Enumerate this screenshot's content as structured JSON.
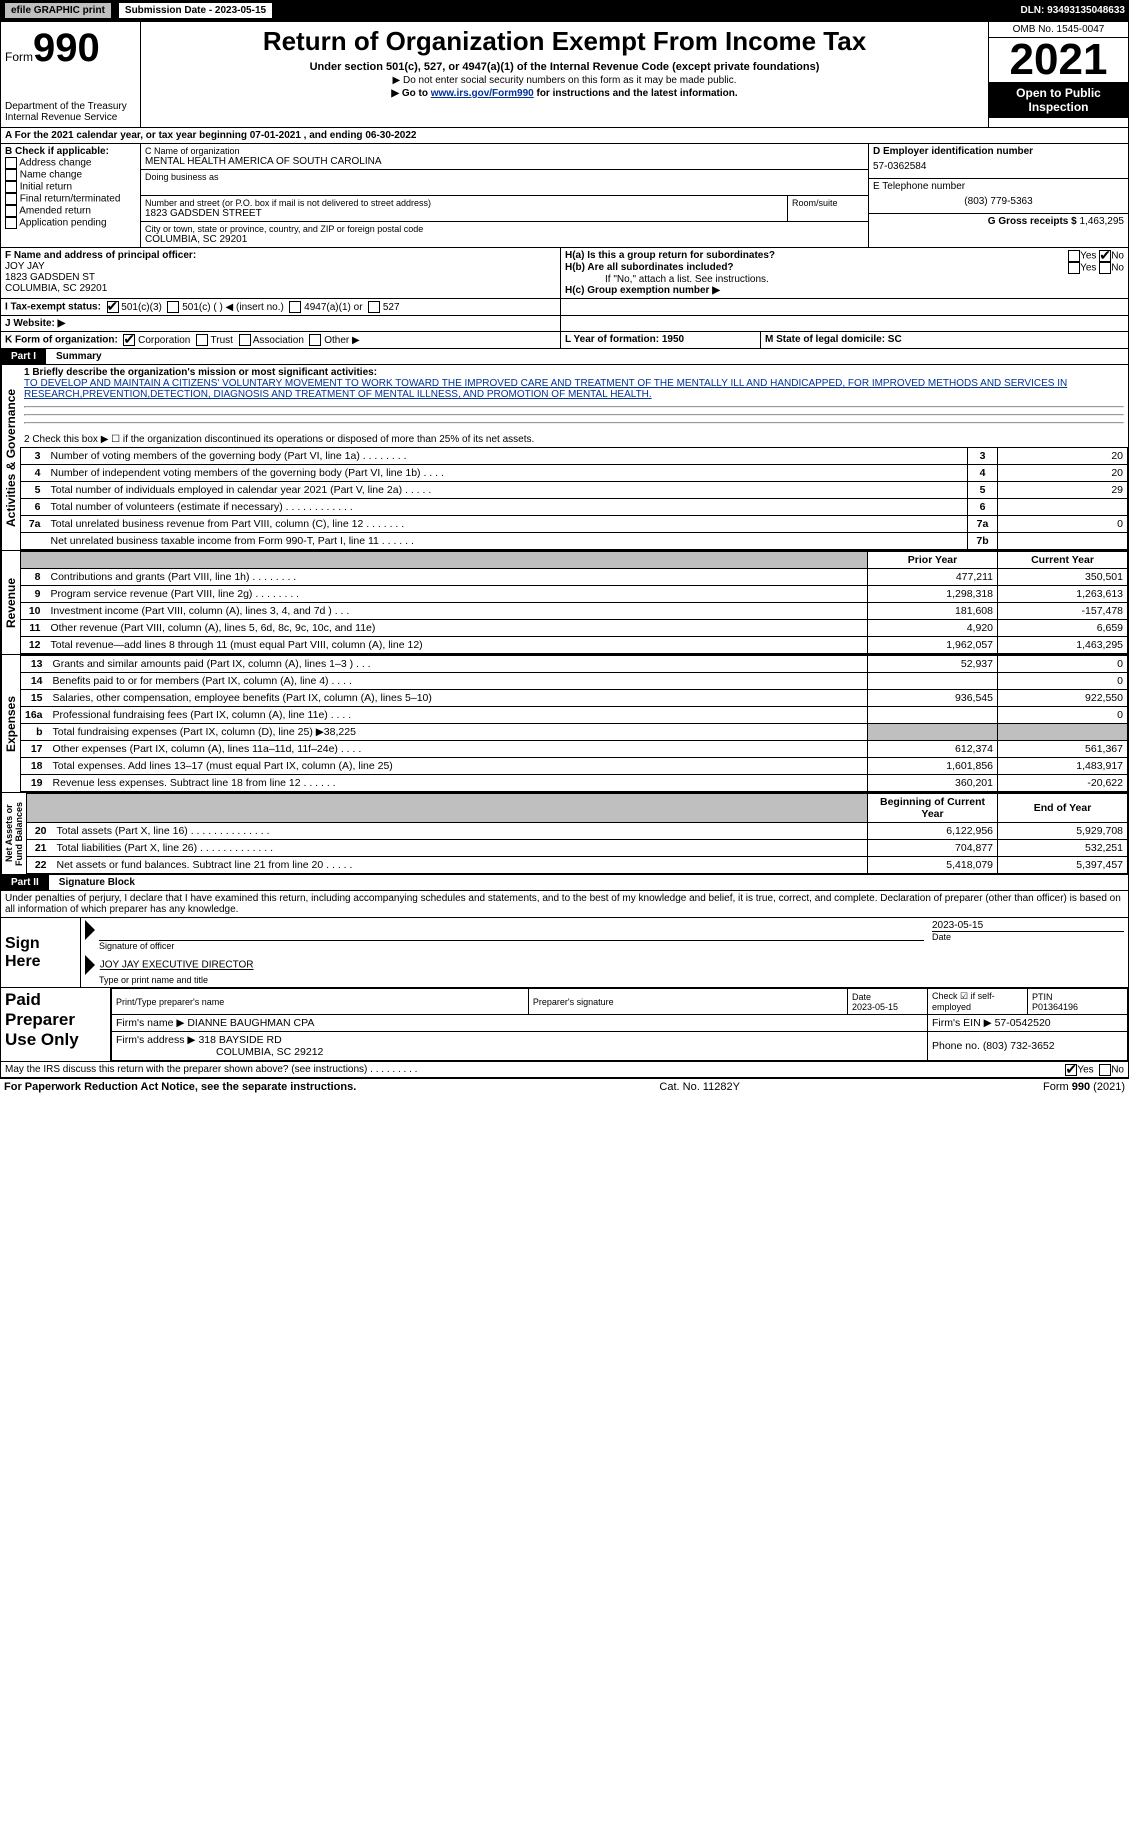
{
  "topbar": {
    "efile": "efile GRAPHIC print",
    "submission_label": "Submission Date - 2023-05-15",
    "dln": "DLN: 93493135048633"
  },
  "header": {
    "form_prefix": "Form",
    "form_number": "990",
    "title": "Return of Organization Exempt From Income Tax",
    "subtitle": "Under section 501(c), 527, or 4947(a)(1) of the Internal Revenue Code (except private foundations)",
    "do_not_enter": "▶ Do not enter social security numbers on this form as it may be made public.",
    "goto_prefix": "▶ Go to ",
    "goto_link": "www.irs.gov/Form990",
    "goto_suffix": " for instructions and the latest information.",
    "dept": "Department of the Treasury",
    "irs": "Internal Revenue Service",
    "omb": "OMB No. 1545-0047",
    "year": "2021",
    "open": "Open to Public Inspection"
  },
  "period": {
    "line": "A For the 2021 calendar year, or tax year beginning 07-01-2021    , and ending 06-30-2022"
  },
  "boxB": {
    "label": "B Check if applicable:",
    "items": [
      "Address change",
      "Name change",
      "Initial return",
      "Final return/terminated",
      "Amended return",
      "Application pending"
    ]
  },
  "boxC": {
    "label": "C Name of organization",
    "name": "MENTAL HEALTH AMERICA OF SOUTH CAROLINA",
    "dba_label": "Doing business as",
    "street_label": "Number and street (or P.O. box if mail is not delivered to street address)",
    "room_label": "Room/suite",
    "street": "1823 GADSDEN STREET",
    "city_label": "City or town, state or province, country, and ZIP or foreign postal code",
    "city": "COLUMBIA, SC  29201"
  },
  "boxD": {
    "label": "D Employer identification number",
    "value": "57-0362584"
  },
  "boxE": {
    "label": "E Telephone number",
    "value": "(803) 779-5363"
  },
  "boxG": {
    "label": "G Gross receipts $",
    "value": "1,463,295"
  },
  "boxF": {
    "label": "F  Name and address of principal officer:",
    "name": "JOY JAY",
    "street": "1823 GADSDEN ST",
    "city": "COLUMBIA, SC  29201"
  },
  "boxH": {
    "a_label": "H(a)  Is this a group return for subordinates?",
    "b_label": "H(b)  Are all subordinates included?",
    "ifno": "If \"No,\" attach a list. See instructions.",
    "c_label": "H(c)  Group exemption number ▶",
    "yes": "Yes",
    "no": "No"
  },
  "boxI": {
    "label": "I    Tax-exempt status:",
    "opts": [
      "501(c)(3)",
      "501(c) (   ) ◀ (insert no.)",
      "4947(a)(1) or",
      "527"
    ]
  },
  "boxJ": {
    "label": "J   Website: ▶"
  },
  "boxK": {
    "label": "K Form of organization:",
    "opts": [
      "Corporation",
      "Trust",
      "Association",
      "Other ▶"
    ]
  },
  "boxL": {
    "label": "L Year of formation: 1950"
  },
  "boxM": {
    "label": "M State of legal domicile: SC"
  },
  "partI": {
    "bar": "Part I",
    "title": "Summary"
  },
  "summary_top": {
    "l1_label": "1  Briefly describe the organization's mission or most significant activities:",
    "l1_text": "TO DEVELOP AND MAINTAIN A CITIZENS' VOLUNTARY MOVEMENT TO WORK TOWARD THE IMPROVED CARE AND TREATMENT OF THE MENTALLY ILL AND HANDICAPPED, FOR IMPROVED METHODS AND SERVICES IN RESEARCH,PREVENTION,DETECTION, DIAGNOSIS AND TREATMENT OF MENTAL ILLNESS, AND PROMOTION OF MENTAL HEALTH.",
    "l2": "2   Check this box ▶ ☐  if the organization discontinued its operations or disposed of more than 25% of its net assets."
  },
  "governance": {
    "section_label": "Activities & Governance",
    "rows": [
      {
        "n": "3",
        "desc": "Number of voting members of the governing body (Part VI, line 1a)   .    .    .    .    .    .    .    .",
        "idx": "3",
        "val": "20"
      },
      {
        "n": "4",
        "desc": "Number of independent voting members of the governing body (Part VI, line 1b)    .    .    .    .",
        "idx": "4",
        "val": "20"
      },
      {
        "n": "5",
        "desc": "Total number of individuals employed in calendar year 2021 (Part V, line 2a)    .    .    .    .    .",
        "idx": "5",
        "val": "29"
      },
      {
        "n": "6",
        "desc": "Total number of volunteers (estimate if necessary)    .    .    .    .    .    .    .    .    .    .    .    .",
        "idx": "6",
        "val": ""
      },
      {
        "n": "7a",
        "desc": "Total unrelated business revenue from Part VIII, column (C), line 12    .    .    .    .    .    .    .",
        "idx": "7a",
        "val": "0"
      },
      {
        "n": "",
        "desc": "Net unrelated business taxable income from Form 990-T, Part I, line 11    .    .    .    .    .    .",
        "idx": "7b",
        "val": ""
      }
    ],
    "b_label": "b"
  },
  "col_headers": {
    "prior": "Prior Year",
    "current": "Current Year"
  },
  "revenue": {
    "section_label": "Revenue",
    "rows": [
      {
        "n": "8",
        "desc": "Contributions and grants (Part VIII, line 1h)    .    .    .    .    .    .    .    .",
        "p": "477,211",
        "c": "350,501"
      },
      {
        "n": "9",
        "desc": "Program service revenue (Part VIII, line 2g)    .    .    .    .    .    .    .    .",
        "p": "1,298,318",
        "c": "1,263,613"
      },
      {
        "n": "10",
        "desc": "Investment income (Part VIII, column (A), lines 3, 4, and 7d )    .    .    .",
        "p": "181,608",
        "c": "-157,478"
      },
      {
        "n": "11",
        "desc": "Other revenue (Part VIII, column (A), lines 5, 6d, 8c, 9c, 10c, and 11e)",
        "p": "4,920",
        "c": "6,659"
      },
      {
        "n": "12",
        "desc": "Total revenue—add lines 8 through 11 (must equal Part VIII, column (A), line 12)",
        "p": "1,962,057",
        "c": "1,463,295"
      }
    ]
  },
  "expenses": {
    "section_label": "Expenses",
    "rows": [
      {
        "n": "13",
        "desc": "Grants and similar amounts paid (Part IX, column (A), lines 1–3 )    .    .    .",
        "p": "52,937",
        "c": "0"
      },
      {
        "n": "14",
        "desc": "Benefits paid to or for members (Part IX, column (A), line 4)    .    .    .    .",
        "p": "",
        "c": "0"
      },
      {
        "n": "15",
        "desc": "Salaries, other compensation, employee benefits (Part IX, column (A), lines 5–10)",
        "p": "936,545",
        "c": "922,550"
      },
      {
        "n": "16a",
        "desc": "Professional fundraising fees (Part IX, column (A), line 11e)    .    .    .    .",
        "p": "",
        "c": "0"
      },
      {
        "n": "b",
        "desc": "Total fundraising expenses (Part IX, column (D), line 25) ▶38,225",
        "p": "__gray__",
        "c": "__gray__"
      },
      {
        "n": "17",
        "desc": "Other expenses (Part IX, column (A), lines 11a–11d, 11f–24e)    .    .    .    .",
        "p": "612,374",
        "c": "561,367"
      },
      {
        "n": "18",
        "desc": "Total expenses. Add lines 13–17 (must equal Part IX, column (A), line 25)",
        "p": "1,601,856",
        "c": "1,483,917"
      },
      {
        "n": "19",
        "desc": "Revenue less expenses. Subtract line 18 from line 12    .    .    .    .    .    .",
        "p": "360,201",
        "c": "-20,622"
      }
    ]
  },
  "netassets": {
    "section_label": "Net Assets or\nFund Balances",
    "headers": {
      "prior": "Beginning of Current Year",
      "current": "End of Year"
    },
    "rows": [
      {
        "n": "20",
        "desc": "Total assets (Part X, line 16)    .    .    .    .    .    .    .    .    .    .    .    .    .    .",
        "p": "6,122,956",
        "c": "5,929,708"
      },
      {
        "n": "21",
        "desc": "Total liabilities (Part X, line 26)    .    .    .    .    .    .    .    .    .    .    .    .    .",
        "p": "704,877",
        "c": "532,251"
      },
      {
        "n": "22",
        "desc": "Net assets or fund balances. Subtract line 21 from line 20    .    .    .    .    .",
        "p": "5,418,079",
        "c": "5,397,457"
      }
    ]
  },
  "partII": {
    "bar": "Part II",
    "title": "Signature Block"
  },
  "penalties": "Under penalties of perjury, I declare that I have examined this return, including accompanying schedules and statements, and to the best of my knowledge and belief, it is true, correct, and complete. Declaration of preparer (other than officer) is based on all information of which preparer has any knowledge.",
  "sign": {
    "here": "Sign Here",
    "sig_officer": "Signature of officer",
    "date": "Date",
    "date_val": "2023-05-15",
    "typed": "JOY JAY  EXECUTIVE DIRECTOR",
    "typed_label": "Type or print name and title"
  },
  "paid": {
    "title": "Paid Preparer Use Only",
    "cols": {
      "print": "Print/Type preparer's name",
      "sig": "Preparer's signature",
      "date": "Date",
      "check": "Check ☑ if self-employed",
      "ptin": "PTIN"
    },
    "date_val": "2023-05-15",
    "ptin_val": "P01364196",
    "firm_name_label": "Firm's name    ▶",
    "firm_name": "DIANNE BAUGHMAN CPA",
    "firm_ein_label": "Firm's EIN ▶",
    "firm_ein": "57-0542520",
    "firm_addr_label": "Firm's address ▶",
    "firm_addr1": "318 BAYSIDE RD",
    "firm_addr2": "COLUMBIA, SC  29212",
    "phone_label": "Phone no.",
    "phone": "(803) 732-3652"
  },
  "discuss": {
    "text": "May the IRS discuss this return with the preparer shown above? (see instructions)    .    .    .    .    .    .    .    .    .",
    "yes": "Yes",
    "no": "No"
  },
  "footer": {
    "pra": "For Paperwork Reduction Act Notice, see the separate instructions.",
    "cat": "Cat. No. 11282Y",
    "form": "Form 990 (2021)"
  }
}
